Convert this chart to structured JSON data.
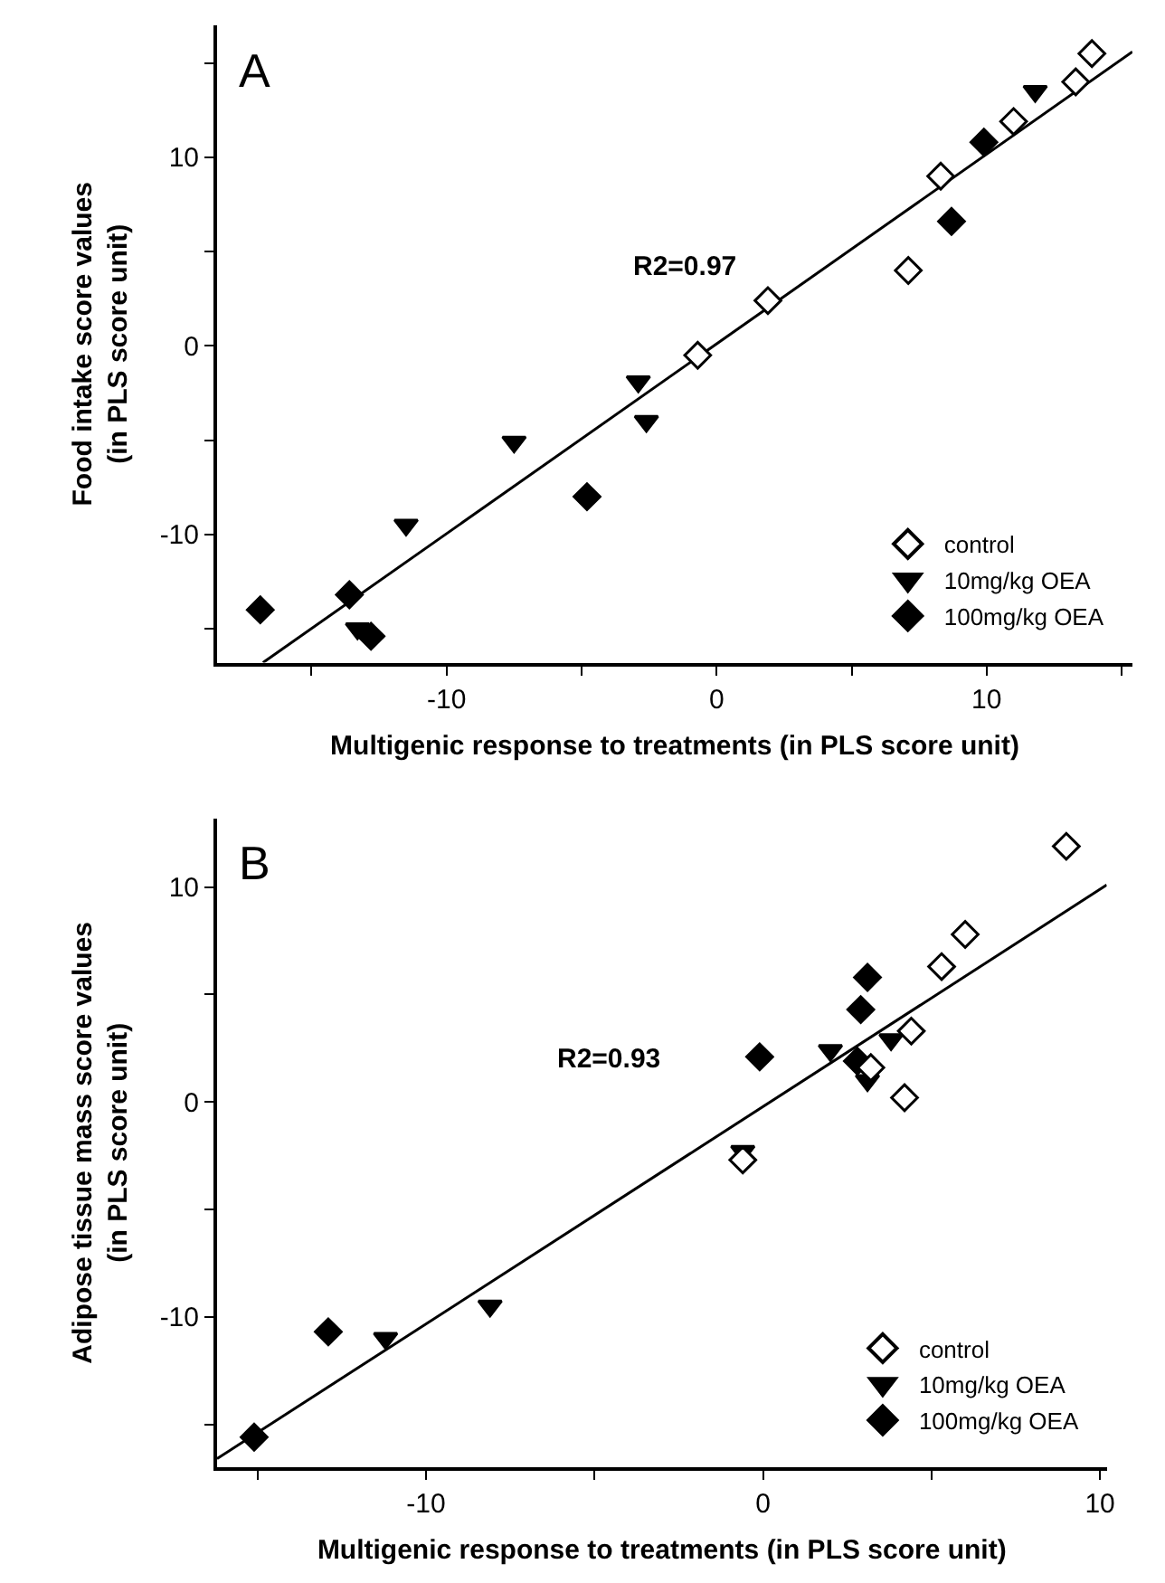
{
  "chart_data": [
    {
      "type": "scatter",
      "title": "A",
      "xlabel": "Multigenic response to treatments (in PLS score unit)",
      "ylabel": "Food intake score values\n(in PLS score unit)",
      "xlim": [
        -18.5,
        15.4
      ],
      "xticks": [
        {
          "value": -15,
          "label": null
        },
        -10,
        {
          "value": -5,
          "label": null
        },
        0,
        {
          "value": 5,
          "label": null
        },
        10,
        {
          "value": 15,
          "label": null
        }
      ],
      "ylim": [
        -16.8,
        17
      ],
      "yticks": [
        {
          "value": -15,
          "label": null
        },
        -10,
        {
          "value": -5,
          "label": null
        },
        0,
        {
          "value": 5,
          "label": null
        },
        10,
        {
          "value": 15,
          "label": null
        }
      ],
      "legend": "bottom right",
      "annotations": [
        "R2=0.97"
      ],
      "series": [
        {
          "name": "control",
          "color": "#ffffff",
          "marker": "diamond",
          "x": [
            13.9,
            13.3,
            11.0,
            8.3,
            7.1,
            1.9,
            -0.7
          ],
          "values": [
            15.5,
            14.0,
            11.9,
            9.0,
            4.0,
            2.4,
            -0.5
          ]
        },
        {
          "name": "10mg/kg OEA",
          "color": "#000000",
          "marker": "triangle",
          "x": [
            11.8,
            -2.9,
            -2.6,
            -7.5,
            -11.5,
            -13.3
          ],
          "values": [
            13.5,
            -1.9,
            -4.0,
            -5.1,
            -9.5,
            -15.0
          ]
        },
        {
          "name": "100mg/kg OEA",
          "color": "#000000",
          "marker": "diamond",
          "x": [
            9.9,
            8.7,
            -4.8,
            -16.9,
            -13.6,
            -12.8
          ],
          "values": [
            10.8,
            6.6,
            -8.0,
            -14.0,
            -13.2,
            -15.4
          ]
        },
        {
          "type": "line",
          "color": "#000000",
          "marker": "none",
          "x": [
            -16.8,
            15.4
          ],
          "values": [
            -16.8,
            15.6
          ]
        }
      ]
    },
    {
      "type": "scatter",
      "title": "B",
      "xlabel": "Multigenic response to treatments (in PLS score unit)",
      "ylabel": "Adipose tissue mass score values\n(in PLS score unit)",
      "xlim": [
        -16.2,
        10.2
      ],
      "xticks": [
        {
          "value": -15,
          "label": null
        },
        -10,
        {
          "value": -5,
          "label": null
        },
        0,
        {
          "value": 5,
          "label": null
        },
        10
      ],
      "ylim": [
        -17,
        13.2
      ],
      "yticks": [
        {
          "value": -15,
          "label": null
        },
        -10,
        {
          "value": -5,
          "label": null
        },
        0,
        {
          "value": 5,
          "label": null
        },
        10
      ],
      "legend": "bottom right",
      "annotations": [
        "R2=0.93"
      ],
      "series": [
        {
          "name": "control",
          "color": "#ffffff",
          "marker": "diamond",
          "x": [
            9.0,
            6.0,
            5.3,
            4.4,
            3.2,
            4.2,
            -0.6
          ],
          "values": [
            11.9,
            7.8,
            6.3,
            3.3,
            1.6,
            0.2,
            -2.7
          ]
        },
        {
          "name": "10mg/kg OEA",
          "color": "#000000",
          "marker": "triangle",
          "x": [
            2.0,
            3.8,
            3.1,
            -0.6,
            -8.1,
            -11.2
          ],
          "values": [
            2.4,
            2.9,
            1.0,
            -2.3,
            -9.5,
            -11.0
          ]
        },
        {
          "name": "100mg/kg OEA",
          "color": "#000000",
          "marker": "diamond",
          "x": [
            3.1,
            2.9,
            2.8,
            -0.1,
            -12.9,
            -15.1
          ],
          "values": [
            5.8,
            4.3,
            1.9,
            2.1,
            -10.7,
            -15.6
          ]
        },
        {
          "type": "line",
          "color": "#000000",
          "marker": "none",
          "x": [
            -16.2,
            10.2
          ],
          "values": [
            -16.6,
            10.1
          ]
        }
      ]
    }
  ]
}
